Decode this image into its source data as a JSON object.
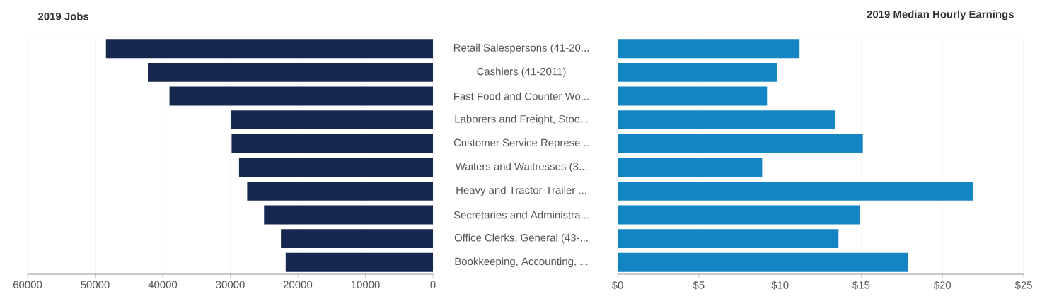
{
  "chart_data": [
    {
      "type": "bar",
      "orientation": "horizontal",
      "title": "2019 Jobs",
      "categories": [
        null,
        null,
        null,
        null,
        null,
        null,
        null,
        null,
        null,
        null
      ],
      "values": [
        48400,
        42200,
        39000,
        29900,
        29800,
        28700,
        27500,
        25000,
        22500,
        21800
      ],
      "color": "#16284f",
      "xlim": [
        60000,
        0
      ],
      "xticks": [
        60000,
        50000,
        40000,
        30000,
        20000,
        10000,
        0
      ],
      "grid": "x"
    },
    {
      "type": "bar",
      "orientation": "horizontal",
      "title": "2019 Median Hourly Earnings",
      "categories": [
        "Retail Salespersons (41-20...",
        "Cashiers (41-2011)",
        "Fast Food and Counter Wo...",
        "Laborers and Freight, Stoc...",
        "Customer Service Represe...",
        "Waiters and Waitresses (3...",
        "Heavy and Tractor-Trailer ...",
        "Secretaries and Administra...",
        "Office Clerks, General (43-...",
        "Bookkeeping, Accounting, ..."
      ],
      "values": [
        11.2,
        9.8,
        9.2,
        13.4,
        15.1,
        8.9,
        21.9,
        14.9,
        13.6,
        17.9
      ],
      "color": "#1385c4",
      "xlim": [
        0,
        25
      ],
      "xticks": [
        {
          "value": 0,
          "label": "$0"
        },
        {
          "value": 5,
          "label": "$5"
        },
        {
          "value": 10,
          "label": "$10"
        },
        {
          "value": 15,
          "label": "$15"
        },
        {
          "value": 20,
          "label": "$20"
        },
        {
          "value": 25,
          "label": "$25"
        }
      ],
      "grid": "x"
    }
  ]
}
